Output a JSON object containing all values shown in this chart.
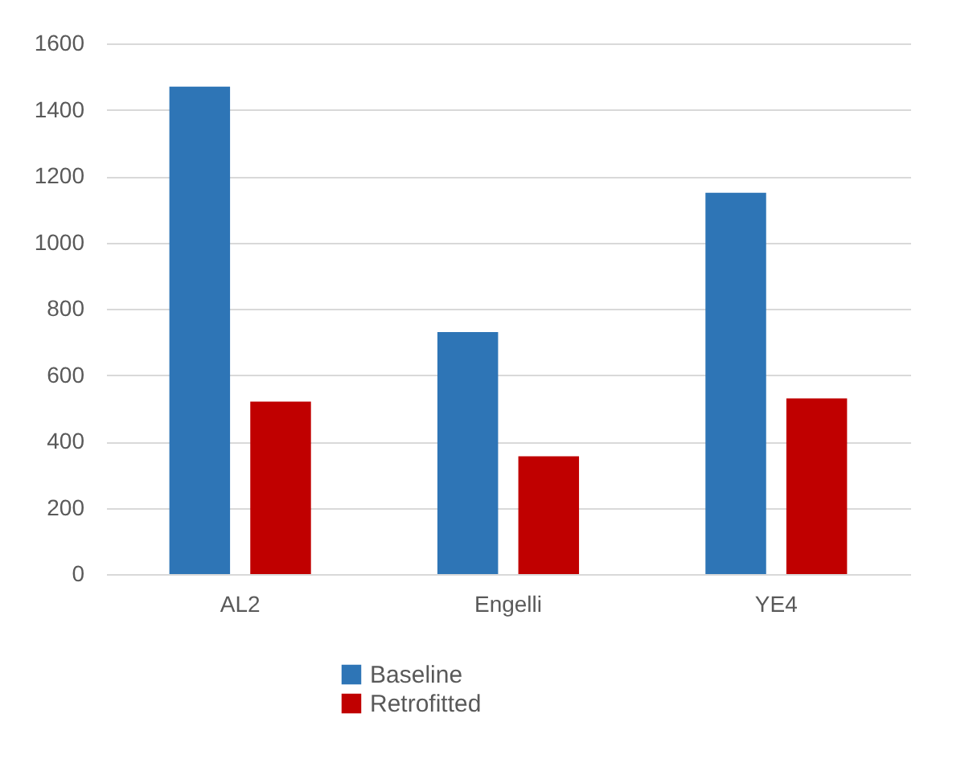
{
  "chart_data": {
    "type": "bar",
    "categories": [
      "AL2",
      "Engelli",
      "YE4"
    ],
    "series": [
      {
        "name": "Baseline",
        "color": "#2e75b6",
        "values": [
          1470,
          730,
          1150
        ]
      },
      {
        "name": "Retrofitted",
        "color": "#c00000",
        "values": [
          520,
          355,
          530
        ]
      }
    ],
    "ylim": [
      0,
      1600
    ],
    "yticks": [
      0,
      200,
      400,
      600,
      800,
      1000,
      1200,
      1400,
      1600
    ],
    "grid": "y",
    "legend": "bottom"
  }
}
